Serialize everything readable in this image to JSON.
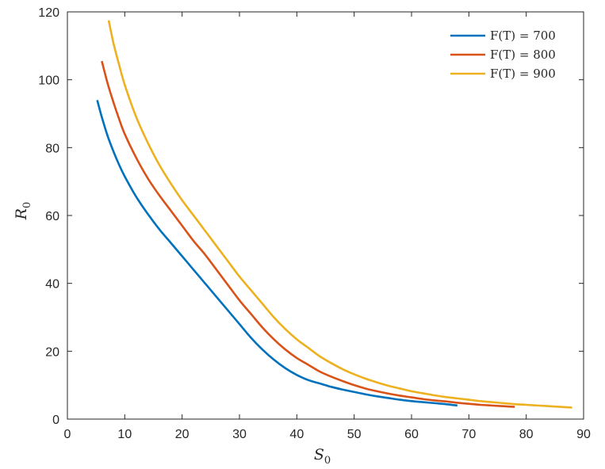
{
  "chart_data": {
    "type": "line",
    "xlabel": "S",
    "xlabel_sub": "0",
    "ylabel": "R",
    "ylabel_sub": "0",
    "xlim": [
      0,
      90
    ],
    "ylim": [
      0,
      120
    ],
    "xticks": [
      0,
      10,
      20,
      30,
      40,
      50,
      60,
      70,
      80,
      90
    ],
    "yticks": [
      0,
      20,
      40,
      60,
      80,
      100,
      120
    ],
    "grid": false,
    "legend_position": "top-right",
    "series": [
      {
        "name": "F(T) = 700",
        "color": "#0072BD",
        "x": [
          5.2,
          6,
          7,
          8,
          9,
          10,
          12,
          14,
          16,
          18,
          20,
          22,
          24,
          26,
          28,
          30,
          32,
          34,
          36,
          38,
          40,
          42,
          44,
          46,
          48,
          50,
          52,
          54,
          56,
          58,
          60,
          62,
          64,
          66,
          68
        ],
        "y": [
          94,
          89,
          83.5,
          79,
          75,
          71.5,
          65.5,
          60.5,
          56,
          52,
          48,
          44,
          40,
          36,
          32,
          28,
          24,
          20.5,
          17.5,
          15,
          13,
          11.5,
          10.5,
          9.5,
          8.7,
          8,
          7.3,
          6.7,
          6.2,
          5.7,
          5.3,
          5,
          4.7,
          4.4,
          4
        ]
      },
      {
        "name": "F(T) = 800",
        "color": "#D95319",
        "x": [
          6,
          7,
          8,
          9,
          10,
          12,
          14,
          16,
          18,
          20,
          22,
          24,
          26,
          28,
          30,
          32,
          34,
          36,
          38,
          40,
          42,
          44,
          46,
          48,
          50,
          52,
          54,
          56,
          58,
          60,
          62,
          64,
          66,
          68,
          70,
          72,
          74,
          76,
          78
        ],
        "y": [
          105.5,
          99,
          93.5,
          88.5,
          84,
          77,
          71,
          66,
          61.5,
          57,
          52.5,
          48.5,
          44,
          39.5,
          35,
          31,
          27,
          23.5,
          20.5,
          18,
          16,
          14,
          12.5,
          11.2,
          10,
          9,
          8.2,
          7.5,
          6.9,
          6.4,
          5.9,
          5.5,
          5.2,
          4.8,
          4.5,
          4.2,
          4,
          3.8,
          3.6
        ]
      },
      {
        "name": "F(T) = 900",
        "color": "#EDB120",
        "x": [
          7.2,
          8,
          9,
          10,
          12,
          14,
          16,
          18,
          20,
          22,
          24,
          26,
          28,
          30,
          32,
          34,
          36,
          38,
          40,
          42,
          44,
          46,
          48,
          50,
          52,
          54,
          56,
          58,
          60,
          62,
          64,
          66,
          68,
          70,
          72,
          74,
          76,
          78,
          80,
          82,
          84,
          86,
          88
        ],
        "y": [
          117.5,
          111,
          104.5,
          98.5,
          89,
          81.5,
          75,
          69.5,
          64.5,
          60,
          55.5,
          51,
          46.5,
          42,
          38,
          34,
          30,
          26.5,
          23.5,
          21,
          18.5,
          16.5,
          14.7,
          13.2,
          11.9,
          10.8,
          9.8,
          9,
          8.2,
          7.6,
          7,
          6.5,
          6.1,
          5.7,
          5.3,
          5,
          4.7,
          4.4,
          4.2,
          4,
          3.8,
          3.6,
          3.4
        ]
      }
    ]
  }
}
